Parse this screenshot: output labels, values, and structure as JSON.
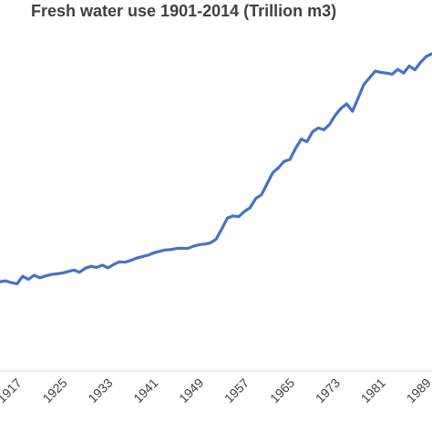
{
  "chart_data": {
    "type": "line",
    "title": "Fresh water use 1901-2014 (Trillion m3)",
    "xlabel": "",
    "ylabel": "",
    "x_tick_labels": [
      "1917",
      "1925",
      "1933",
      "1941",
      "1949",
      "1957",
      "1965",
      "1973",
      "1981",
      "1989"
    ],
    "x_tick_years": [
      1917,
      1925,
      1933,
      1941,
      1949,
      1957,
      1965,
      1973,
      1981,
      1989
    ],
    "xlim": [
      1914,
      1990
    ],
    "ylim": [
      0,
      1
    ],
    "y_scale_note": "relative",
    "grid": false,
    "series": [
      {
        "color": "#4472C4",
        "x": [
          1914,
          1915,
          1916,
          1917,
          1918,
          1919,
          1920,
          1921,
          1922,
          1923,
          1924,
          1925,
          1926,
          1927,
          1928,
          1929,
          1930,
          1931,
          1932,
          1933,
          1934,
          1935,
          1936,
          1937,
          1938,
          1939,
          1940,
          1941,
          1942,
          1943,
          1944,
          1945,
          1946,
          1947,
          1948,
          1949,
          1950,
          1951,
          1952,
          1953,
          1954,
          1955,
          1956,
          1957,
          1958,
          1959,
          1960,
          1961,
          1962,
          1963,
          1964,
          1965,
          1966,
          1967,
          1968,
          1969,
          1970,
          1971,
          1972,
          1973,
          1974,
          1975,
          1976,
          1977,
          1978,
          1979,
          1980,
          1981,
          1982,
          1983,
          1984,
          1985,
          1986,
          1987,
          1988,
          1989,
          1990
        ],
        "values": [
          0.24,
          0.243,
          0.238,
          0.235,
          0.255,
          0.247,
          0.258,
          0.251,
          0.256,
          0.26,
          0.262,
          0.264,
          0.268,
          0.272,
          0.266,
          0.277,
          0.282,
          0.279,
          0.285,
          0.278,
          0.287,
          0.294,
          0.293,
          0.298,
          0.304,
          0.308,
          0.312,
          0.318,
          0.322,
          0.326,
          0.327,
          0.33,
          0.331,
          0.33,
          0.336,
          0.34,
          0.342,
          0.345,
          0.355,
          0.382,
          0.412,
          0.418,
          0.416,
          0.43,
          0.44,
          0.465,
          0.475,
          0.505,
          0.535,
          0.548,
          0.565,
          0.57,
          0.6,
          0.625,
          0.618,
          0.645,
          0.655,
          0.65,
          0.665,
          0.69,
          0.708,
          0.72,
          0.7,
          0.735,
          0.772,
          0.79,
          0.808,
          0.805,
          0.803,
          0.8,
          0.813,
          0.803,
          0.822,
          0.812,
          0.832,
          0.848,
          0.855
        ]
      }
    ]
  }
}
